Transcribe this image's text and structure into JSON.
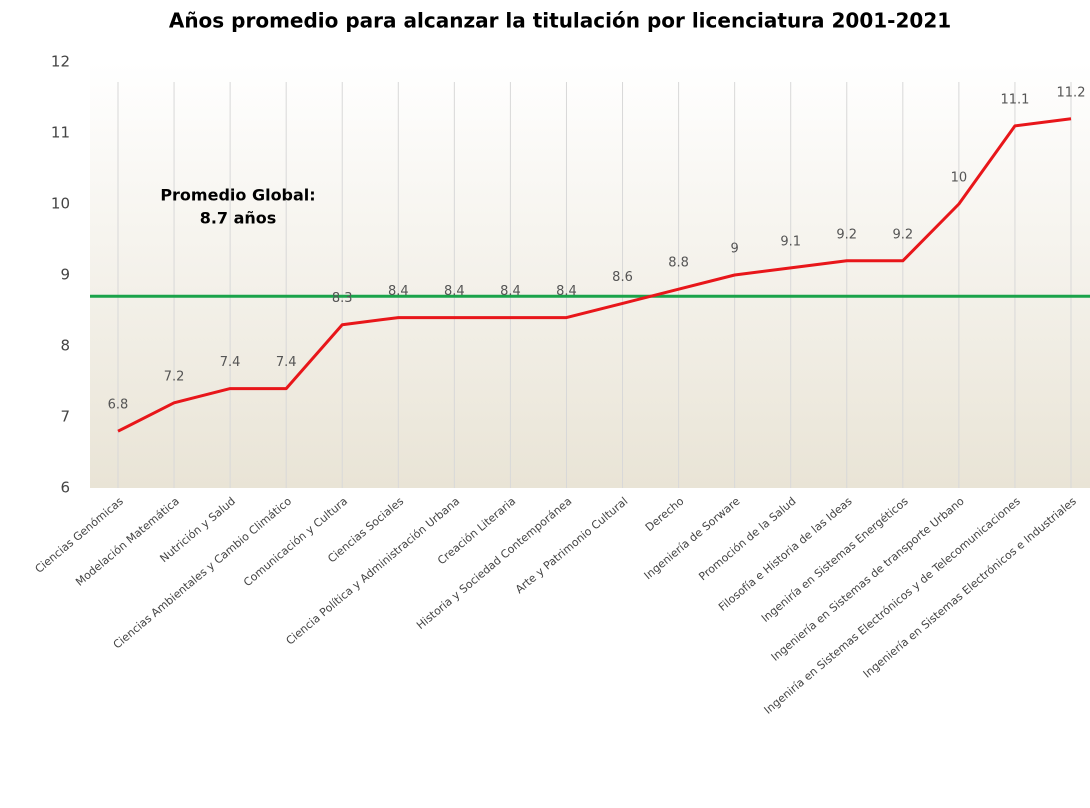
{
  "chart_data": {
    "type": "line",
    "title": "Años promedio para alcanzar la titulación por licenciatura 2001-2021",
    "categories": [
      "Ciencias Genómicas",
      "Modelación Matemática",
      "Nutrición y Salud",
      "Ciencias Ambientales y Cambio Climático",
      "Comunicación y Cultura",
      "Ciencias Sociales",
      "Ciencia Política y Administración Urbana",
      "Creación Literaria",
      "Historia y Sociedad Contemporánea",
      "Arte y Patrimonio Cultural",
      "Derecho",
      "Ingeniería de Sorware",
      "Promoción de la Salud",
      "Filosofía e Historia de las Ideas",
      "Ingeniría en Sistemas Energéticos",
      "Ingeniería en Sistemas de transporte Urbano",
      "Ingeniría en Sistemas Electrónicos y de Telecomunicaciones",
      "Ingeniería en Sistemas Electrónicos e Industriales"
    ],
    "values": [
      6.8,
      7.2,
      7.4,
      7.4,
      8.3,
      8.4,
      8.4,
      8.4,
      8.4,
      8.6,
      8.8,
      9,
      9.1,
      9.2,
      9.2,
      10,
      11.1,
      11.2
    ],
    "color": "#e8161a",
    "reference_line": {
      "value": 8.7,
      "color": "#1aa34a",
      "label": [
        "Promedio Global:",
        "8.7 años"
      ]
    },
    "ylim": [
      6,
      12
    ],
    "yticks": [
      6,
      7,
      8,
      9,
      10,
      11,
      12
    ],
    "grid": "x"
  }
}
